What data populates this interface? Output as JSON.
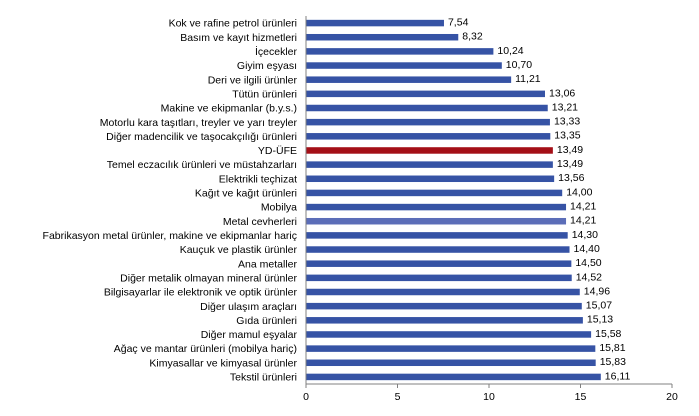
{
  "chart_data": {
    "type": "bar",
    "orientation": "horizontal",
    "title": "",
    "xlabel": "",
    "ylabel": "",
    "xlim": [
      0,
      20
    ],
    "x_ticks": [
      "0",
      "5",
      "10",
      "15",
      "20"
    ],
    "grid": false,
    "legend": "none",
    "colors": {
      "default": "#3653A5",
      "highlight_total": "#A40F17",
      "highlight_secondary": "#5B6DB8",
      "axis": "#808080"
    },
    "categories": [
      "Kok ve rafine petrol ürünleri",
      "Basım ve kayıt hizmetleri",
      "İçecekler",
      "Giyim eşyası",
      "Deri ve ilgili ürünler",
      "Tütün ürünleri",
      "Makine ve ekipmanlar (b.y.s.)",
      "Motorlu kara taşıtları, treyler ve yarı treyler",
      "Diğer madencilik ve taşocakçılığı ürünleri",
      "YD-ÜFE",
      "Temel eczacılık ürünleri ve müstahzarları",
      "Elektrikli teçhizat",
      "Kağıt ve kağıt ürünleri",
      "Mobilya",
      "Metal cevherleri",
      "Fabrikasyon metal ürünler, makine ve ekipmanlar hariç",
      "Kauçuk ve plastik ürünler",
      "Ana metaller",
      "Diğer metalik olmayan mineral ürünler",
      "Bilgisayarlar ile elektronik ve optik ürünler",
      "Diğer ulaşım araçları",
      "Gıda ürünleri",
      "Diğer mamul eşyalar",
      "Ağaç ve mantar ürünleri (mobilya hariç)",
      "Kimyasallar ve kimyasal ürünler",
      "Tekstil ürünleri"
    ],
    "values": [
      7.54,
      8.32,
      10.24,
      10.7,
      11.21,
      13.06,
      13.21,
      13.33,
      13.35,
      13.49,
      13.49,
      13.56,
      14.0,
      14.21,
      14.21,
      14.3,
      14.4,
      14.5,
      14.52,
      14.96,
      15.07,
      15.13,
      15.58,
      15.81,
      15.83,
      16.11
    ],
    "value_labels": [
      "7,54",
      "8,32",
      "10,24",
      "10,70",
      "11,21",
      "13,06",
      "13,21",
      "13,33",
      "13,35",
      "13,49",
      "13,49",
      "13,56",
      "14,00",
      "14,21",
      "14,21",
      "14,30",
      "14,40",
      "14,50",
      "14,52",
      "14,96",
      "15,07",
      "15,13",
      "15,58",
      "15,81",
      "15,83",
      "16,11"
    ],
    "bar_color_keys": [
      "default",
      "default",
      "default",
      "default",
      "default",
      "default",
      "default",
      "default",
      "default",
      "highlight_total",
      "default",
      "default",
      "default",
      "default",
      "highlight_secondary",
      "default",
      "default",
      "default",
      "default",
      "default",
      "default",
      "default",
      "default",
      "default",
      "default",
      "default"
    ]
  }
}
